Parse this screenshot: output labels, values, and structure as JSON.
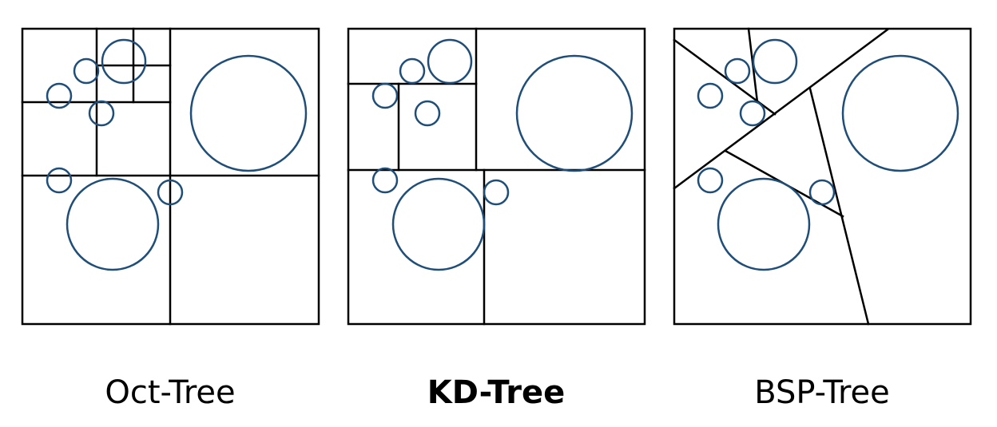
{
  "panels": [
    {
      "id": "octree",
      "caption": "Oct-Tree",
      "emphasized": false
    },
    {
      "id": "kdtree",
      "caption": "KD-Tree",
      "emphasized": true
    },
    {
      "id": "bsptree",
      "caption": "BSP-Tree",
      "emphasized": false
    }
  ],
  "colors": {
    "frame": "#000000",
    "object": "#1f4e79",
    "background": "#ffffff"
  }
}
